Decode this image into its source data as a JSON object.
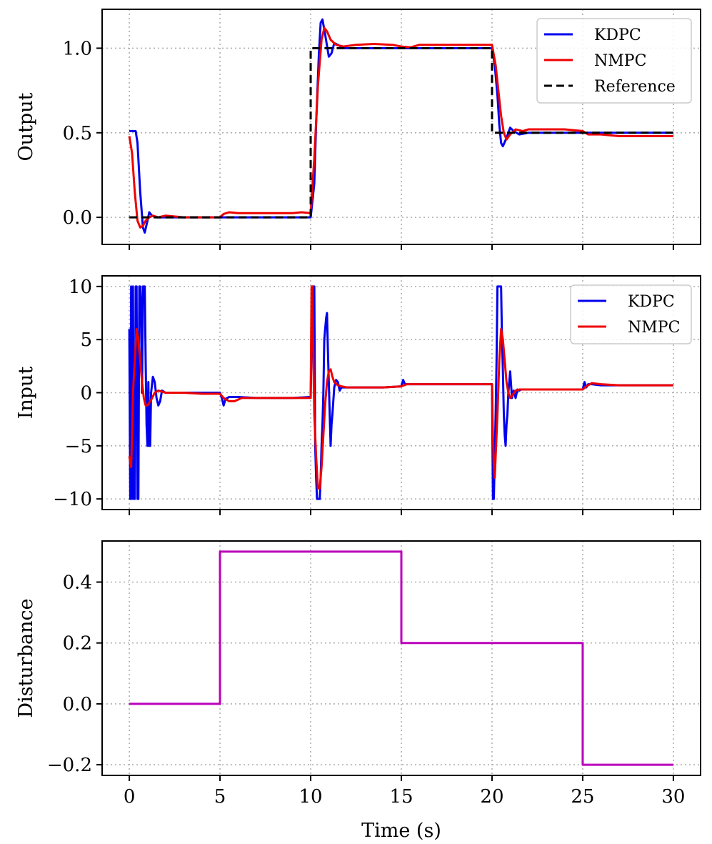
{
  "chart_data": [
    {
      "type": "line",
      "ylabel": "Output",
      "xlim": [
        -1.5,
        31.5
      ],
      "ylim": [
        -0.16,
        1.23
      ],
      "xticks": [
        0,
        5,
        10,
        15,
        20,
        25,
        30
      ],
      "yticks": [
        0.0,
        0.5,
        1.0
      ],
      "ytick_labels": [
        "0.0",
        "0.5",
        "1.0"
      ],
      "grid": true,
      "legend_position": "top-right",
      "series": [
        {
          "name": "KDPC",
          "color": "#0000ee",
          "dash": "solid",
          "x": [
            0,
            0.35,
            0.45,
            0.6,
            0.75,
            0.85,
            1.0,
            1.1,
            1.25,
            1.5,
            2,
            3,
            5,
            5.5,
            6,
            8,
            10,
            10.2,
            10.3,
            10.45,
            10.55,
            10.65,
            10.8,
            11.0,
            11.15,
            11.3,
            11.5,
            11.8,
            12.5,
            15,
            20,
            20.15,
            20.3,
            20.4,
            20.5,
            20.6,
            20.8,
            21.0,
            21.2,
            21.5,
            22,
            25,
            30
          ],
          "y": [
            0.51,
            0.51,
            0.44,
            0.15,
            -0.06,
            -0.09,
            -0.02,
            0.03,
            0.01,
            0.0,
            0.0,
            0.0,
            0.0,
            0.0,
            0.0,
            0.0,
            0.0,
            0.2,
            0.55,
            0.96,
            1.15,
            1.17,
            1.08,
            0.95,
            0.97,
            1.03,
            1.02,
            1.0,
            1.0,
            1.0,
            1.0,
            0.9,
            0.72,
            0.55,
            0.44,
            0.42,
            0.47,
            0.53,
            0.51,
            0.49,
            0.5,
            0.5,
            0.5
          ]
        },
        {
          "name": "NMPC",
          "color": "#ee0000",
          "dash": "solid",
          "x": [
            0,
            0.15,
            0.3,
            0.45,
            0.6,
            0.75,
            0.9,
            1.1,
            1.3,
            1.6,
            2,
            3,
            4,
            5,
            5.2,
            5.5,
            6,
            7,
            8,
            9,
            9.5,
            10,
            10.2,
            10.4,
            10.6,
            10.75,
            10.9,
            11.1,
            11.4,
            11.8,
            12.5,
            13.5,
            14.5,
            15,
            15.5,
            16,
            18,
            20,
            20.2,
            20.35,
            20.5,
            20.65,
            20.8,
            21.0,
            21.3,
            21.7,
            22,
            24,
            25,
            25.3,
            26,
            27,
            30
          ],
          "y": [
            0.48,
            0.38,
            0.15,
            -0.02,
            -0.06,
            -0.05,
            -0.02,
            0.0,
            0.01,
            0.0,
            0.01,
            0.0,
            0.0,
            0.0,
            0.02,
            0.03,
            0.025,
            0.025,
            0.025,
            0.025,
            0.03,
            0.025,
            0.35,
            0.78,
            1.05,
            1.12,
            1.1,
            1.05,
            1.02,
            1.01,
            1.02,
            1.025,
            1.02,
            1.01,
            1.005,
            1.02,
            1.02,
            1.02,
            0.9,
            0.75,
            0.6,
            0.5,
            0.46,
            0.49,
            0.52,
            0.51,
            0.52,
            0.52,
            0.51,
            0.49,
            0.49,
            0.48,
            0.48
          ]
        },
        {
          "name": "Reference",
          "color": "#000000",
          "dash": "dashed",
          "x": [
            0,
            10,
            10,
            20,
            20,
            30
          ],
          "y": [
            0,
            0,
            1,
            1,
            0.5,
            0.5
          ]
        }
      ],
      "legend": [
        "KDPC",
        "NMPC",
        "Reference"
      ]
    },
    {
      "type": "line",
      "ylabel": "Input",
      "xlim": [
        -1.5,
        31.5
      ],
      "ylim": [
        -11,
        11
      ],
      "xticks": [
        0,
        5,
        10,
        15,
        20,
        25,
        30
      ],
      "yticks": [
        -10,
        -5,
        0,
        5,
        10
      ],
      "ytick_labels": [
        "−10",
        "−5",
        "0",
        "5",
        "10"
      ],
      "grid": true,
      "legend_position": "top-right",
      "series": [
        {
          "name": "KDPC",
          "color": "#0000ee",
          "dash": "solid",
          "x": [
            0,
            0.05,
            0.1,
            0.15,
            0.2,
            0.25,
            0.3,
            0.35,
            0.4,
            0.45,
            0.5,
            0.55,
            0.6,
            0.65,
            0.7,
            0.75,
            0.8,
            0.85,
            0.9,
            0.95,
            1.0,
            1.05,
            1.1,
            1.15,
            1.2,
            1.3,
            1.4,
            1.5,
            1.6,
            1.7,
            1.8,
            2,
            2.5,
            3,
            4,
            5,
            5.1,
            5.2,
            5.3,
            5.5,
            6,
            7,
            8,
            9,
            10,
            10.1,
            10.2,
            10.25,
            10.3,
            10.35,
            10.4,
            10.45,
            10.5,
            10.55,
            10.6,
            10.65,
            10.7,
            10.75,
            10.8,
            10.85,
            10.9,
            10.95,
            11.0,
            11.05,
            11.1,
            11.15,
            11.2,
            11.3,
            11.4,
            11.5,
            11.6,
            11.7,
            11.8,
            12,
            12.5,
            13,
            14,
            15,
            15.1,
            15.2,
            15.3,
            15.5,
            16,
            18,
            20,
            20.05,
            20.1,
            20.2,
            20.25,
            20.3,
            20.35,
            20.4,
            20.45,
            20.5,
            20.55,
            20.6,
            20.65,
            20.7,
            20.75,
            20.8,
            20.85,
            20.9,
            20.95,
            21.0,
            21.1,
            21.2,
            21.3,
            21.4,
            21.5,
            21.6,
            21.8,
            22,
            23,
            24,
            25,
            25.1,
            25.2,
            25.3,
            25.5,
            26,
            27,
            30
          ],
          "y": [
            6,
            -10,
            10,
            -10,
            10,
            -10,
            -10,
            10,
            10,
            -10,
            -10,
            10,
            10,
            8,
            0,
            10,
            10,
            10,
            3,
            -3,
            -5,
            1,
            -5,
            -5,
            0,
            1.5,
            1.0,
            -0.5,
            -1.2,
            -0.8,
            0.2,
            0.0,
            0.0,
            0.0,
            0.0,
            0.0,
            -0.5,
            -1.2,
            -0.6,
            -0.4,
            -0.4,
            -0.5,
            -0.5,
            -0.5,
            -0.4,
            10,
            10,
            -5,
            -8,
            -10,
            -10,
            -10,
            -10,
            -8,
            -5,
            -3,
            0,
            5,
            6,
            7,
            7.5,
            4,
            1,
            -2,
            -5,
            -3,
            -2,
            0.5,
            1.2,
            1.0,
            0.2,
            0.5,
            0.5,
            0.5,
            0.5,
            0.5,
            0.5,
            0.6,
            1.2,
            0.8,
            0.8,
            0.8,
            0.8,
            0.8,
            0.8,
            -10,
            -10,
            -2,
            3,
            10,
            10,
            10,
            10,
            10,
            5,
            2,
            -2,
            -4,
            -5,
            -3,
            -2,
            0,
            1,
            2,
            -0.5,
            0.2,
            -0.5,
            0.3,
            0.2,
            0.3,
            0.3,
            0.3,
            0.3,
            0.3,
            0.3,
            1.0,
            0.5,
            0.8,
            0.8,
            0.7,
            0.7,
            0.7
          ]
        },
        {
          "name": "NMPC",
          "color": "#ee0000",
          "dash": "solid",
          "x": [
            0,
            0.1,
            0.15,
            0.2,
            0.3,
            0.4,
            0.5,
            0.6,
            0.7,
            0.8,
            0.9,
            1.0,
            1.2,
            1.4,
            1.6,
            1.8,
            2.0,
            2.5,
            3,
            4,
            5,
            5.2,
            5.5,
            5.8,
            6.2,
            7,
            8,
            9,
            10,
            10.05,
            10.1,
            10.15,
            10.2,
            10.3,
            10.4,
            10.5,
            10.6,
            10.7,
            10.8,
            10.9,
            11.0,
            11.1,
            11.2,
            11.3,
            11.5,
            11.7,
            12,
            12.5,
            13,
            14,
            15,
            15.3,
            16,
            18,
            20,
            20.05,
            20.1,
            20.15,
            20.2,
            20.3,
            20.4,
            20.5,
            20.6,
            20.7,
            20.8,
            20.9,
            21.0,
            21.1,
            21.3,
            21.5,
            21.8,
            22,
            23,
            25,
            25.2,
            25.5,
            26,
            27,
            30
          ],
          "y": [
            -6,
            -7,
            -4,
            0,
            3,
            6,
            5,
            3,
            1,
            -0.5,
            -1.2,
            -1.2,
            -0.7,
            0.0,
            0.2,
            0.1,
            0.0,
            0.0,
            0.0,
            -0.1,
            -0.1,
            -0.5,
            -0.8,
            -0.8,
            -0.5,
            -0.5,
            -0.5,
            -0.5,
            -0.5,
            10,
            10,
            3,
            -2,
            -6,
            -9,
            -9,
            -7,
            -4,
            -1,
            1,
            2,
            2.2,
            1.5,
            1.0,
            0.7,
            0.6,
            0.5,
            0.5,
            0.5,
            0.5,
            0.6,
            0.8,
            0.8,
            0.8,
            0.8,
            -4,
            -7,
            -8,
            -6,
            -2,
            3,
            6,
            5,
            3,
            1,
            0,
            -0.5,
            -0.3,
            0.2,
            0.3,
            0.3,
            0.3,
            0.3,
            0.3,
            0.6,
            0.9,
            0.8,
            0.7,
            0.7
          ]
        }
      ],
      "legend": [
        "KDPC",
        "NMPC"
      ]
    },
    {
      "type": "line",
      "xlabel": "Time (s)",
      "ylabel": "Disturbance",
      "xlim": [
        -1.5,
        31.5
      ],
      "ylim": [
        -0.235,
        0.535
      ],
      "xticks": [
        0,
        5,
        10,
        15,
        20,
        25,
        30
      ],
      "xtick_labels": [
        "0",
        "5",
        "10",
        "15",
        "20",
        "25",
        "30"
      ],
      "yticks": [
        -0.2,
        0.0,
        0.2,
        0.4
      ],
      "ytick_labels": [
        "−0.2",
        "0.0",
        "0.2",
        "0.4"
      ],
      "grid": true,
      "series": [
        {
          "name": "Disturbance",
          "color": "#bb00bb",
          "dash": "solid",
          "x": [
            0,
            5,
            5,
            15,
            15,
            25,
            25,
            30
          ],
          "y": [
            0,
            0,
            0.5,
            0.5,
            0.2,
            0.2,
            -0.2,
            -0.2
          ]
        }
      ]
    }
  ]
}
